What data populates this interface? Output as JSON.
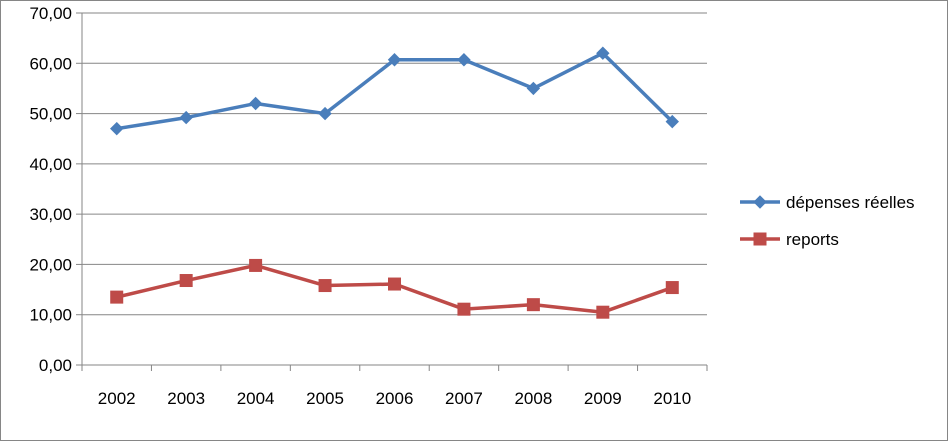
{
  "chart_data": {
    "type": "line",
    "title": "",
    "xlabel": "",
    "ylabel": "",
    "categories": [
      "2002",
      "2003",
      "2004",
      "2005",
      "2006",
      "2007",
      "2008",
      "2009",
      "2010"
    ],
    "y_ticks": [
      "0,00",
      "10,00",
      "20,00",
      "30,00",
      "40,00",
      "50,00",
      "60,00",
      "70,00"
    ],
    "ylim": [
      0,
      70
    ],
    "grid": true,
    "legend_position": "right",
    "series": [
      {
        "name": "dépenses réelles",
        "color": "#4a7ebb",
        "marker": "diamond",
        "values": [
          47.0,
          49.2,
          52.0,
          50.0,
          60.7,
          60.7,
          55.0,
          62.0,
          48.4
        ]
      },
      {
        "name": "reports",
        "color": "#be4b48",
        "marker": "square",
        "values": [
          13.5,
          16.8,
          19.8,
          15.8,
          16.1,
          11.1,
          12.0,
          10.5,
          15.4
        ]
      }
    ]
  }
}
